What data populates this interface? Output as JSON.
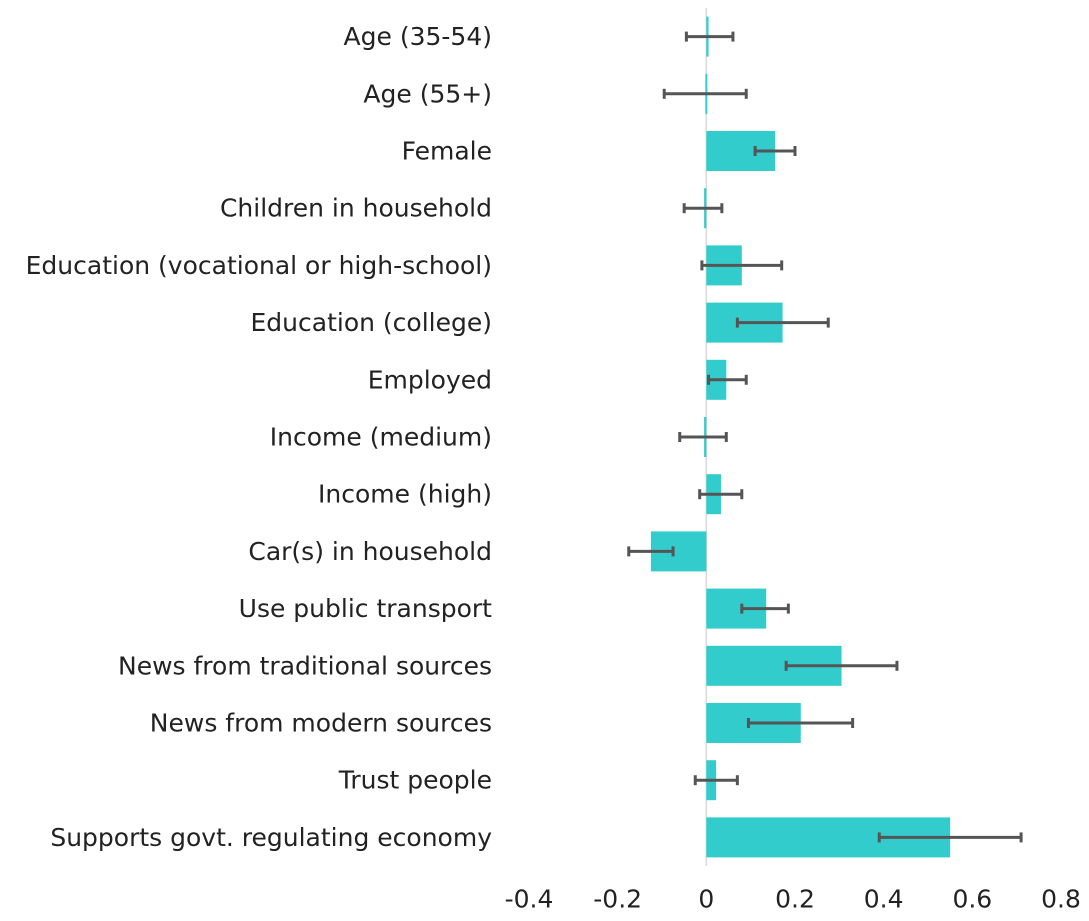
{
  "chart_data": {
    "type": "bar",
    "orientation": "horizontal",
    "categories": [
      "Age (35-54)",
      "Age (55+)",
      "Female",
      "Children in household",
      "Education (vocational or high-school)",
      "Education (college)",
      "Employed",
      "Income (medium)",
      "Income (high)",
      "Car(s) in household",
      "Use public transport",
      "News from traditional sources",
      "News from modern sources",
      "Trust people",
      "Supports govt. regulating economy"
    ],
    "values": [
      0.005,
      0.0,
      0.155,
      -0.005,
      0.08,
      0.172,
      0.045,
      -0.005,
      0.033,
      -0.125,
      0.135,
      0.305,
      0.213,
      0.022,
      0.55
    ],
    "error_low": [
      -0.045,
      -0.095,
      0.11,
      -0.05,
      -0.01,
      0.07,
      0.005,
      -0.06,
      -0.015,
      -0.175,
      0.08,
      0.18,
      0.095,
      -0.025,
      0.39
    ],
    "error_high": [
      0.06,
      0.09,
      0.2,
      0.035,
      0.17,
      0.275,
      0.09,
      0.045,
      0.08,
      -0.075,
      0.185,
      0.43,
      0.33,
      0.07,
      0.71
    ],
    "xlim": [
      -0.4,
      0.8
    ],
    "x_ticks": [
      "-0.4",
      "-0.2",
      "0",
      "0.2",
      "0.4",
      "0.6",
      "0.8"
    ],
    "title": "",
    "xlabel": "",
    "ylabel": "",
    "grid": false,
    "legend": "none",
    "colors": {
      "bar": "#33CCCC",
      "error_bar": "#555555",
      "zero_line": "#D9D9D9"
    }
  }
}
